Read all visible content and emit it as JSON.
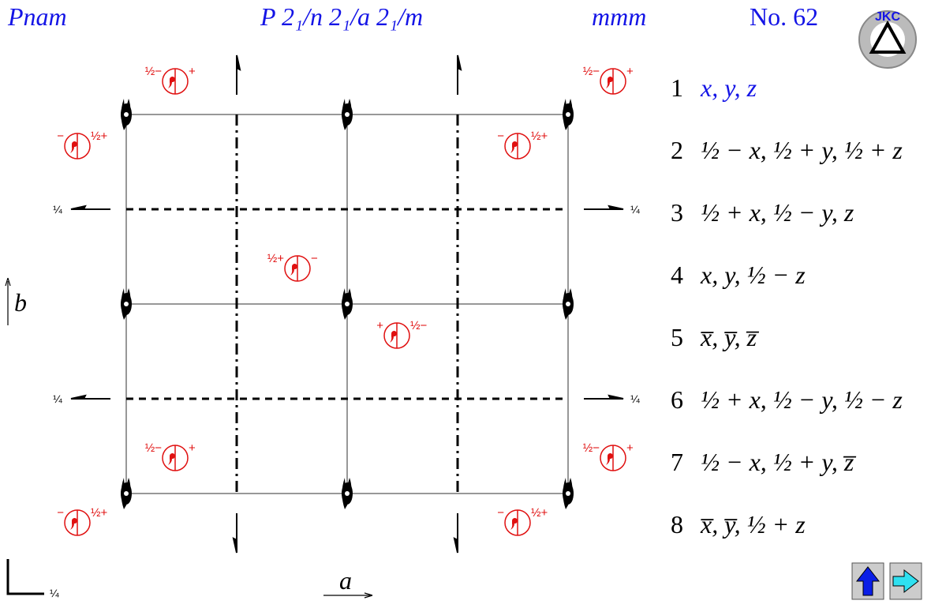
{
  "header": {
    "symbol": "Pnam",
    "full_symbol": "P 2₁/n 2₁/a 2₁/m",
    "point_group": "mmm",
    "number": "No. 62"
  },
  "logo": "JKC",
  "diagram": {
    "symbols": [
      {
        "left": "½−",
        "right": "+"
      },
      {
        "left": "½−",
        "right": "+"
      },
      {
        "left": "−",
        "right": "½+"
      },
      {
        "left": "−",
        "right": "½+"
      },
      {
        "left": "½+",
        "right": "−"
      },
      {
        "left": "+",
        "right": "½−"
      },
      {
        "left": "½−",
        "right": "+"
      },
      {
        "left": "½−",
        "right": "+"
      },
      {
        "left": "−",
        "right": "½+"
      },
      {
        "left": "−",
        "right": "½+"
      }
    ],
    "height_labels": [
      "¼",
      "¼",
      "¼",
      "¼"
    ],
    "origin_height": "¼",
    "axis_a": "a",
    "axis_b": "b"
  },
  "positions": [
    {
      "number": "1",
      "coordinates": "x, y, z"
    },
    {
      "number": "2",
      "coordinates": "½ − x, ½ + y, ½ + z"
    },
    {
      "number": "3",
      "coordinates": "½ + x, ½ − y, z"
    },
    {
      "number": "4",
      "coordinates": "x, y, ½ − z"
    },
    {
      "number": "5",
      "coordinates": "x̅, y̅, z̅"
    },
    {
      "number": "6",
      "coordinates": "½ + x, ½ − y, ½ − z"
    },
    {
      "number": "7",
      "coordinates": "½ − x, ½ + y, z̅"
    },
    {
      "number": "8",
      "coordinates": "x̅, y̅, ½ + z"
    }
  ]
}
